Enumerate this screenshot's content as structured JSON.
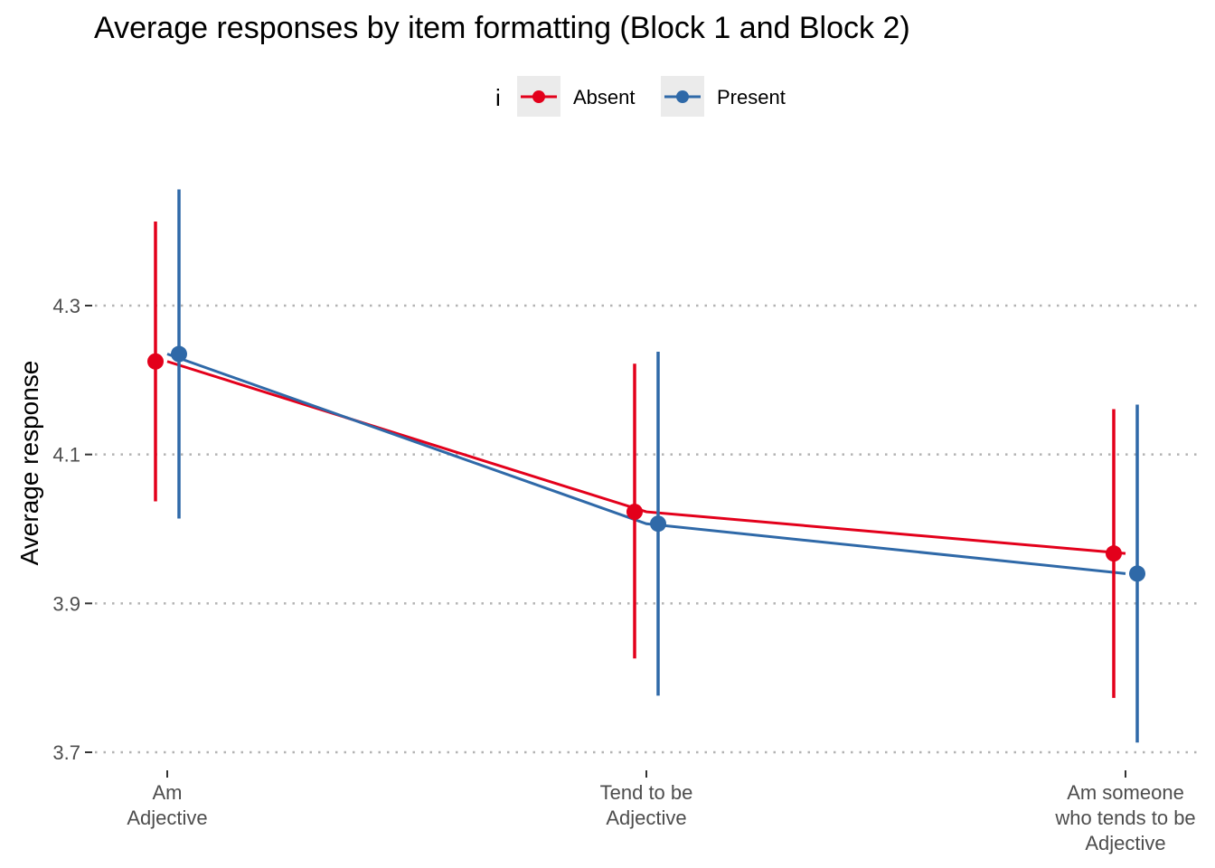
{
  "chart_data": {
    "type": "line",
    "title": "Average responses by item formatting (Block 1 and Block 2)",
    "xlabel": "",
    "ylabel": "Average response",
    "legend_title": "i",
    "legend_position": "top",
    "categories": [
      [
        "Am",
        "Adjective"
      ],
      [
        "Tend to be",
        "Adjective"
      ],
      [
        "Am someone",
        "who tends to be",
        "Adjective"
      ]
    ],
    "y_ticks": [
      3.7,
      3.9,
      4.1,
      4.3
    ],
    "ylim": [
      3.68,
      4.46
    ],
    "grid": "horizontal dotted",
    "series": [
      {
        "name": "Absent",
        "color": "#e3001b",
        "values": [
          4.225,
          4.023,
          3.967
        ],
        "lower": [
          4.037,
          3.826,
          3.773
        ],
        "upper": [
          4.413,
          4.222,
          4.161
        ]
      },
      {
        "name": "Present",
        "color": "#2f69a8",
        "values": [
          4.235,
          4.007,
          3.94
        ],
        "lower": [
          4.014,
          3.776,
          3.713
        ],
        "upper": [
          4.456,
          4.238,
          4.167
        ]
      }
    ]
  }
}
